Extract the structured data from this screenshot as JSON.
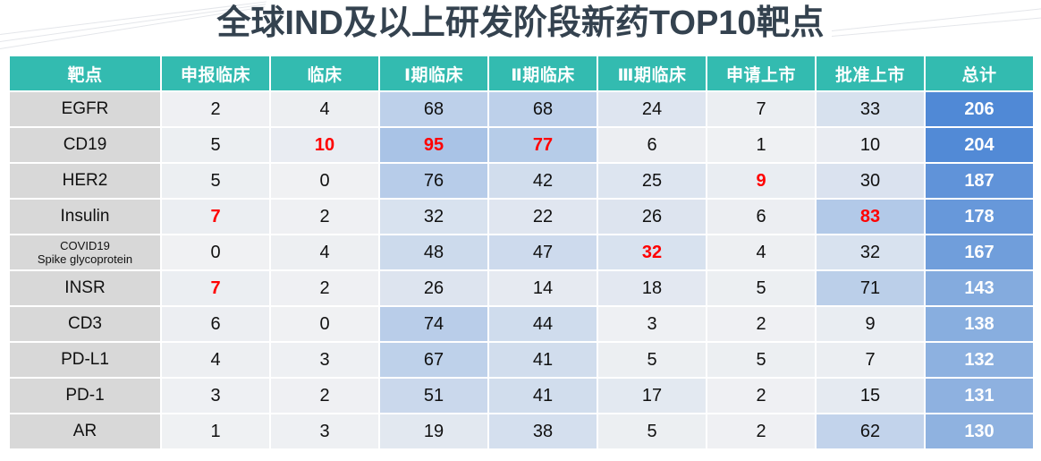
{
  "title": "全球IND及以上研发阶段新药TOP10靶点",
  "table": {
    "headers": [
      "靶点",
      "申报临床",
      "临床",
      "Ⅰ期临床",
      "Ⅱ期临床",
      "Ⅲ期临床",
      "申请上市",
      "批准上市",
      "总计"
    ],
    "rows": [
      {
        "target": "EGFR",
        "values": [
          "2",
          "4",
          "68",
          "68",
          "24",
          "7",
          "33"
        ],
        "total": "206"
      },
      {
        "target": "CD19",
        "values": [
          "5",
          "10",
          "95",
          "77",
          "6",
          "1",
          "10"
        ],
        "total": "204"
      },
      {
        "target": "HER2",
        "values": [
          "5",
          "0",
          "76",
          "42",
          "25",
          "9",
          "30"
        ],
        "total": "187"
      },
      {
        "target": "Insulin",
        "values": [
          "7",
          "2",
          "32",
          "22",
          "26",
          "6",
          "83"
        ],
        "total": "178"
      },
      {
        "target": "COVID19",
        "target_line2": "Spike glycoprotein",
        "values": [
          "0",
          "4",
          "48",
          "47",
          "32",
          "4",
          "32"
        ],
        "total": "167"
      },
      {
        "target": "INSR",
        "values": [
          "7",
          "2",
          "26",
          "14",
          "18",
          "5",
          "71"
        ],
        "total": "143"
      },
      {
        "target": "CD3",
        "values": [
          "6",
          "0",
          "74",
          "44",
          "3",
          "2",
          "9"
        ],
        "total": "138"
      },
      {
        "target": "PD-L1",
        "values": [
          "4",
          "3",
          "67",
          "41",
          "5",
          "5",
          "7"
        ],
        "total": "132"
      },
      {
        "target": "PD-1",
        "values": [
          "3",
          "2",
          "51",
          "41",
          "17",
          "2",
          "15"
        ],
        "total": "131"
      },
      {
        "target": "AR",
        "values": [
          "1",
          "3",
          "19",
          "38",
          "5",
          "2",
          "62"
        ],
        "total": "130"
      }
    ],
    "highlighted_cells": [
      {
        "row": 1,
        "col": 1
      },
      {
        "row": 1,
        "col": 2
      },
      {
        "row": 1,
        "col": 3
      },
      {
        "row": 2,
        "col": 5
      },
      {
        "row": 3,
        "col": 0
      },
      {
        "row": 3,
        "col": 6
      },
      {
        "row": 4,
        "col": 4
      },
      {
        "row": 5,
        "col": 0
      }
    ]
  },
  "colors": {
    "header_bg": "#33bbb0",
    "target_bg": "#d8d8d8",
    "highlight_text": "#ff0000",
    "total_max": "#5089d6",
    "total_min": "#8fb2e0",
    "title_color": "#34424f"
  },
  "chart_data": {
    "type": "table",
    "title": "全球IND及以上研发阶段新药TOP10靶点",
    "columns": [
      "靶点",
      "申报临床",
      "临床",
      "Ⅰ期临床",
      "Ⅱ期临床",
      "Ⅲ期临床",
      "申请上市",
      "批准上市",
      "总计"
    ],
    "categories": [
      "EGFR",
      "CD19",
      "HER2",
      "Insulin",
      "COVID19 Spike glycoprotein",
      "INSR",
      "CD3",
      "PD-L1",
      "PD-1",
      "AR"
    ],
    "series": [
      {
        "name": "申报临床",
        "values": [
          2,
          5,
          5,
          7,
          0,
          7,
          6,
          4,
          3,
          1
        ]
      },
      {
        "name": "临床",
        "values": [
          4,
          10,
          0,
          2,
          4,
          2,
          0,
          3,
          2,
          3
        ]
      },
      {
        "name": "Ⅰ期临床",
        "values": [
          68,
          95,
          76,
          32,
          48,
          26,
          74,
          67,
          51,
          19
        ]
      },
      {
        "name": "Ⅱ期临床",
        "values": [
          68,
          77,
          42,
          22,
          47,
          14,
          44,
          41,
          41,
          38
        ]
      },
      {
        "name": "Ⅲ期临床",
        "values": [
          24,
          6,
          25,
          26,
          32,
          18,
          3,
          5,
          17,
          5
        ]
      },
      {
        "name": "申请上市",
        "values": [
          7,
          1,
          9,
          6,
          4,
          5,
          2,
          5,
          2,
          2
        ]
      },
      {
        "name": "批准上市",
        "values": [
          33,
          10,
          30,
          83,
          32,
          71,
          9,
          7,
          15,
          62
        ]
      },
      {
        "name": "总计",
        "values": [
          206,
          204,
          187,
          178,
          167,
          143,
          138,
          132,
          131,
          130
        ]
      }
    ]
  }
}
